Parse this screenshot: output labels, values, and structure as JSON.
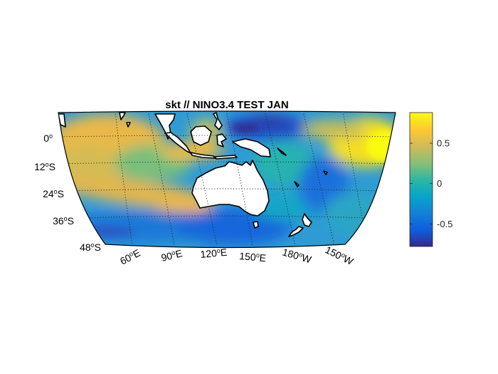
{
  "figure": {
    "title": "skt // NINO3.4 TEST JAN"
  },
  "map": {
    "projection": "equal-area (lat 6°N–52°S, lon 40°E–145°W)",
    "lat_labels": [
      {
        "deg": "0",
        "suffix": ""
      },
      {
        "deg": "12",
        "suffix": "S"
      },
      {
        "deg": "24",
        "suffix": "S"
      },
      {
        "deg": "36",
        "suffix": "S"
      },
      {
        "deg": "48",
        "suffix": "S"
      }
    ],
    "lon_labels": [
      {
        "deg": "60",
        "suffix": "E"
      },
      {
        "deg": "90",
        "suffix": "E"
      },
      {
        "deg": "120",
        "suffix": "E"
      },
      {
        "deg": "150",
        "suffix": "E"
      },
      {
        "deg": "180",
        "suffix": "W"
      },
      {
        "deg": "150",
        "suffix": "W"
      }
    ],
    "land_color": "#ffffff",
    "ocean_pattern": "positive anomalies (yellow/orange) in tropical western Indian Ocean, Indonesian seas, south Indian Ocean band and eastern equatorial Pacific; negative anomalies (blue) in western Pacific north of New Guinea and southern mid-latitudes"
  },
  "colorbar": {
    "ticks": [
      "0.5",
      "0",
      "-0.5"
    ],
    "tick_values": [
      0.5,
      0,
      -0.5
    ],
    "range": [
      -0.78,
      0.88
    ],
    "colormap": "parula",
    "colors": [
      "#352a87",
      "#0f5cdd",
      "#1481d6",
      "#06a4ca",
      "#2eb7a4",
      "#87bf77",
      "#d1bb59",
      "#fec832",
      "#f9fb0e"
    ]
  }
}
